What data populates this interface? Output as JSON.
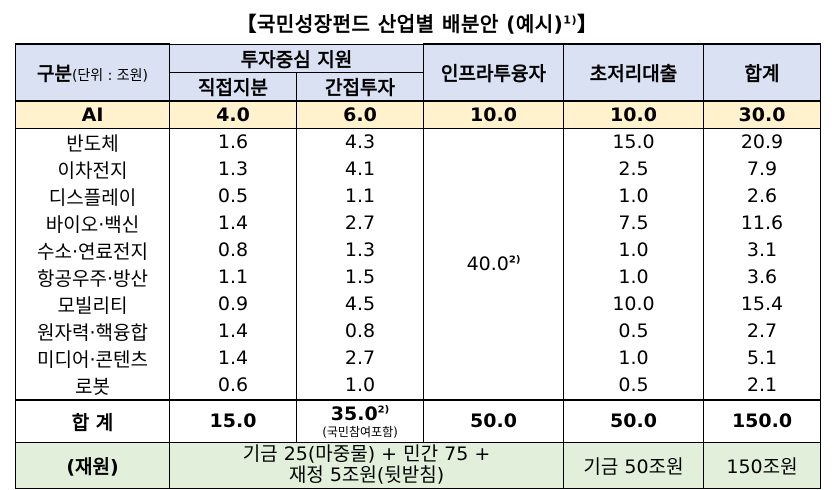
{
  "title": "【국민성장펀드 산업별 배분안 (예시)",
  "title_note": "1)",
  "title_close": "】",
  "headers": {
    "category": "구분",
    "unit": "(단위 : 조원)",
    "investment": "투자중심 지원",
    "direct": "직접지분",
    "indirect": "간접투자",
    "infra": "인프라투융자",
    "lowrate": "초저리대출",
    "total": "합계"
  },
  "ai_row": {
    "name": "AI",
    "direct": "4.0",
    "indirect": "6.0",
    "infra": "10.0",
    "lowrate": "10.0",
    "total": "30.0"
  },
  "infra_merged": "40.0",
  "infra_merged_note": "2)",
  "rows": [
    {
      "name": "반도체",
      "direct": "1.6",
      "indirect": "4.3",
      "lowrate": "15.0",
      "total": "20.9"
    },
    {
      "name": "이차전지",
      "direct": "1.3",
      "indirect": "4.1",
      "lowrate": "2.5",
      "total": "7.9"
    },
    {
      "name": "디스플레이",
      "direct": "0.5",
      "indirect": "1.1",
      "lowrate": "1.0",
      "total": "2.6"
    },
    {
      "name": "바이오·백신",
      "direct": "1.4",
      "indirect": "2.7",
      "lowrate": "7.5",
      "total": "11.6"
    },
    {
      "name": "수소·연료전지",
      "direct": "0.8",
      "indirect": "1.3",
      "lowrate": "1.0",
      "total": "3.1"
    },
    {
      "name": "항공우주·방산",
      "direct": "1.1",
      "indirect": "1.5",
      "lowrate": "1.0",
      "total": "3.6"
    },
    {
      "name": "모빌리티",
      "direct": "0.9",
      "indirect": "4.5",
      "lowrate": "10.0",
      "total": "15.4"
    },
    {
      "name": "원자력·핵융합",
      "direct": "1.4",
      "indirect": "0.8",
      "lowrate": "0.5",
      "total": "2.7"
    },
    {
      "name": "미디어·콘텐츠",
      "direct": "1.4",
      "indirect": "2.7",
      "lowrate": "1.0",
      "total": "5.1"
    },
    {
      "name": "로봇",
      "direct": "0.6",
      "indirect": "1.0",
      "lowrate": "0.5",
      "total": "2.1"
    }
  ],
  "total_row": {
    "name": "합 계",
    "direct": "15.0",
    "indirect": "35.0",
    "indirect_note": "2)",
    "indirect_sub": "(국민참여포함)",
    "infra": "50.0",
    "lowrate": "50.0",
    "total": "150.0"
  },
  "source_row": {
    "name": "(재원)",
    "investment_line1": "기금 25(마중물) + 민간 75 +",
    "investment_line2": "재정 5조원(뒷받침)",
    "lowrate": "기금 50조원",
    "total": "150조원"
  }
}
